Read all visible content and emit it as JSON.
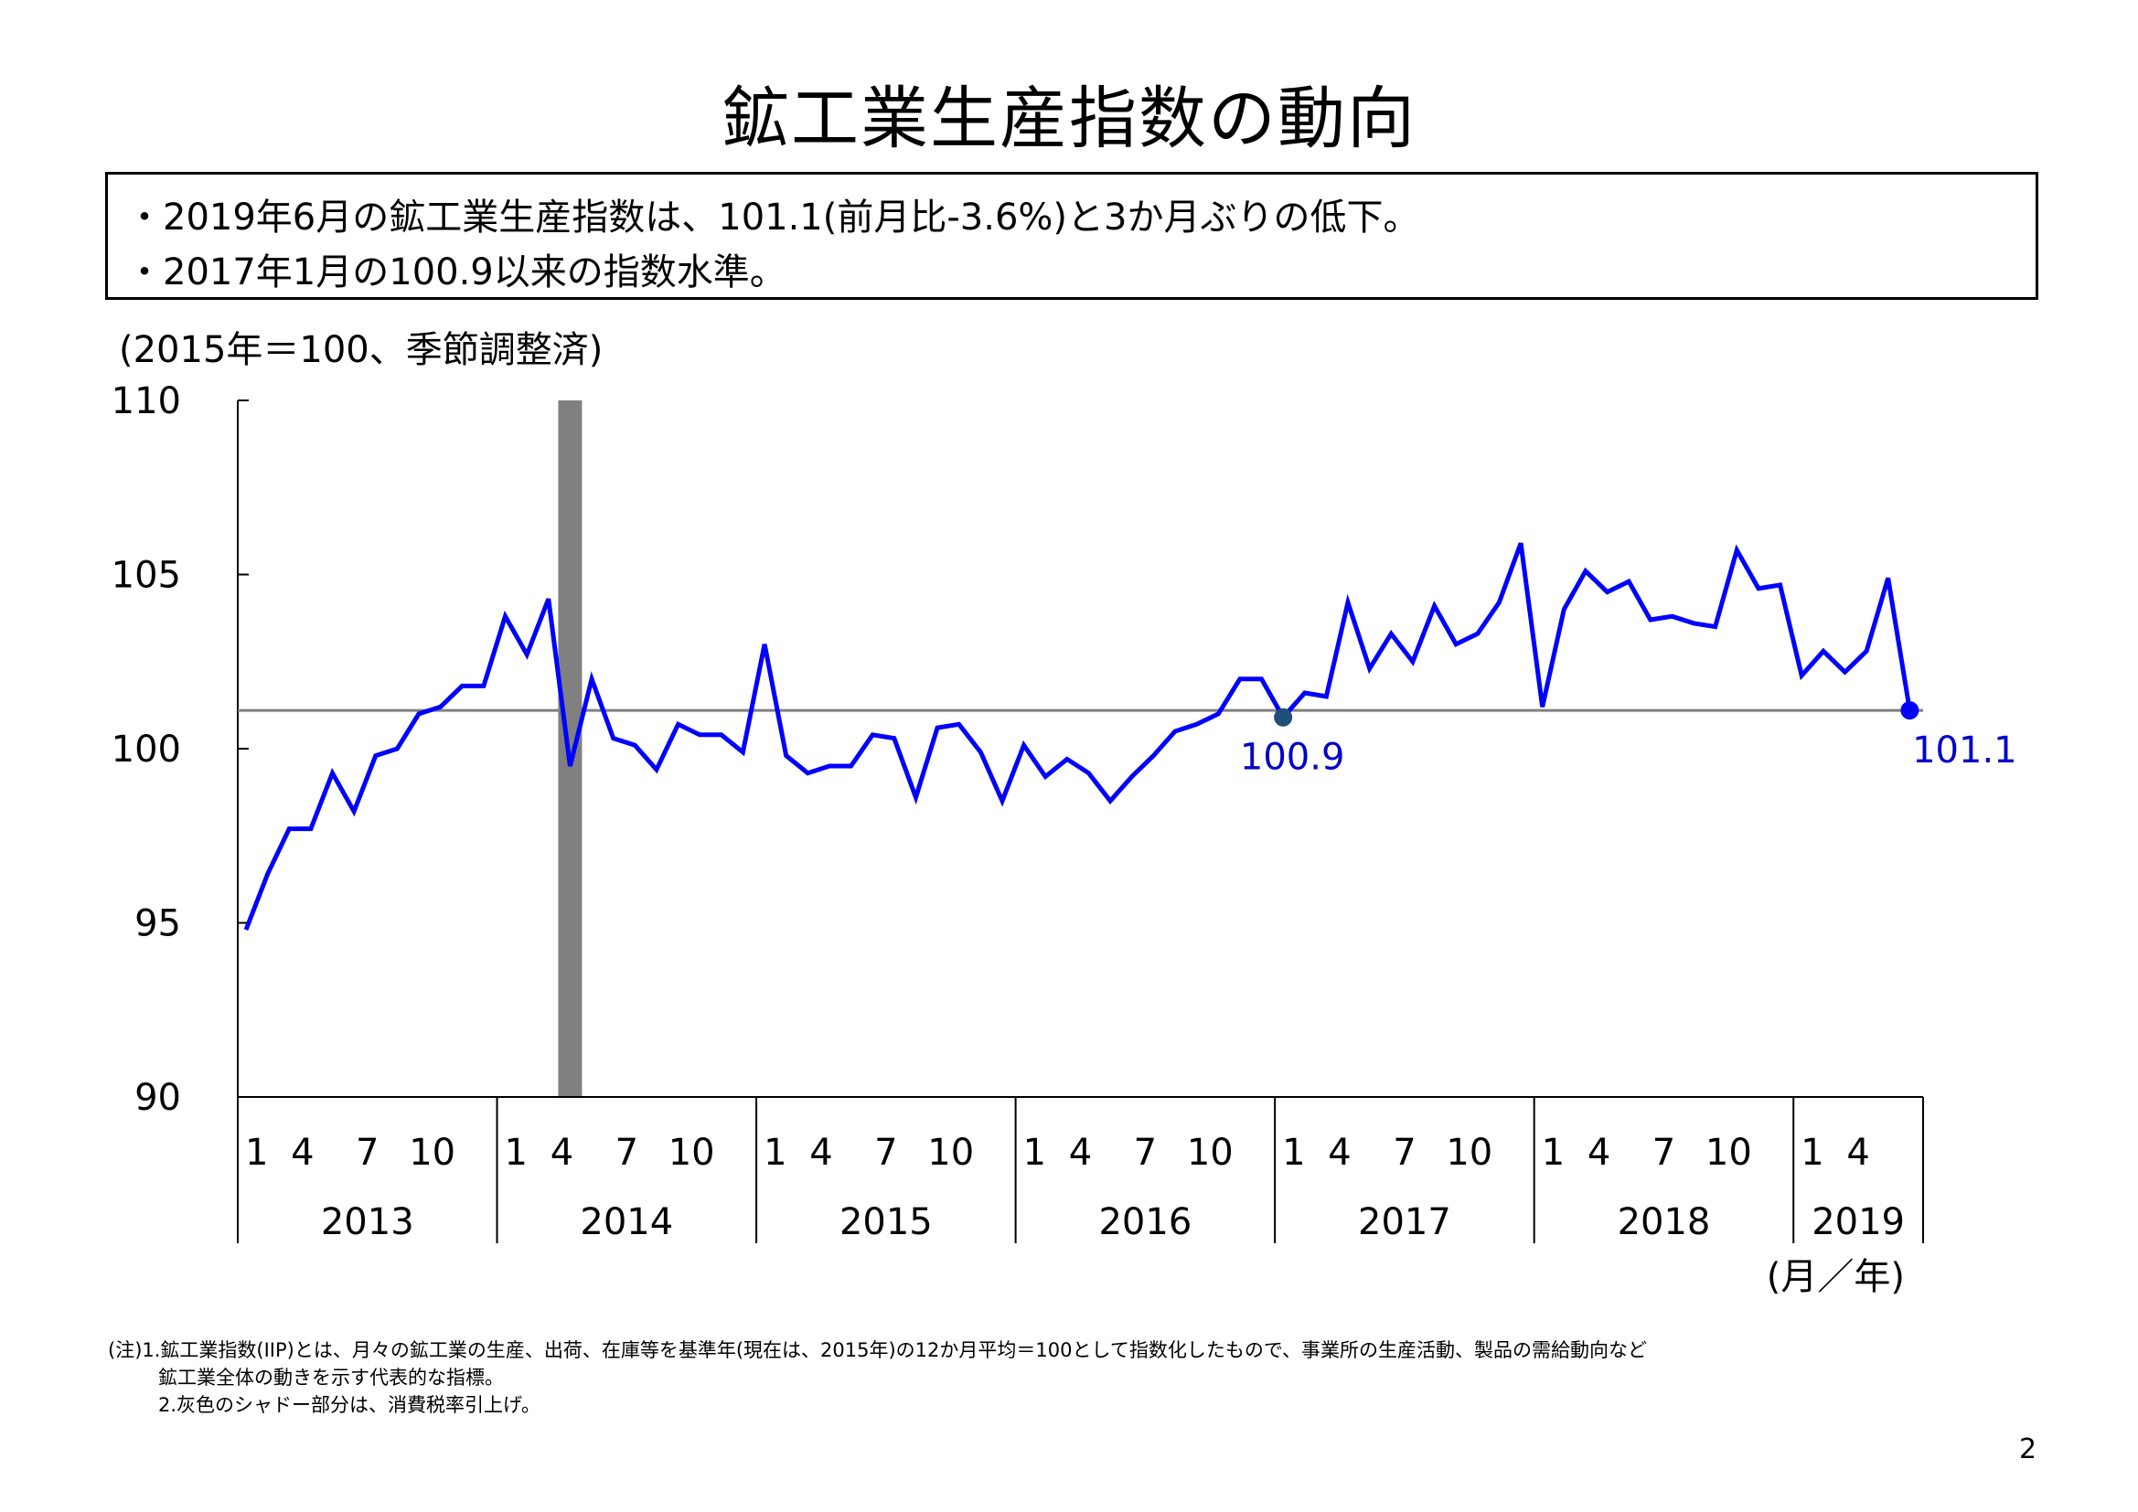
{
  "slide": {
    "title": "鉱工業生産指数の動向",
    "summary": [
      "・2019年6月の鉱工業生産指数は、101.1(前月比-3.6%)と3か月ぶりの低下。",
      "・2017年1月の100.9以来の指数水準。"
    ],
    "unit_note": "(2015年＝100、季節調整済)",
    "notes": [
      "(注)1.鉱工業指数(IIP)とは、月々の鉱工業の生産、出荷、在庫等を基準年(現在は、2015年)の12か月平均＝100として指数化したもので、事業所の生産活動、製品の需給動向など",
      "鉱工業全体の動きを示す代表的な指標。",
      "2.灰色のシャドー部分は、消費税率引上げ。"
    ],
    "page_number": "2"
  },
  "chart_data": {
    "type": "line",
    "ylim": [
      90,
      110
    ],
    "yticks": [
      90,
      95,
      100,
      105,
      110
    ],
    "month_ticks": [
      "1",
      "4",
      "7",
      "10"
    ],
    "years": [
      "2013",
      "2014",
      "2015",
      "2016",
      "2017",
      "2018",
      "2019"
    ],
    "x_unit_label": "(月／年)",
    "series": [
      {
        "color": "#0000ff",
        "start": "2013-01",
        "values": [
          94.8,
          96.4,
          97.7,
          97.7,
          99.3,
          98.2,
          99.8,
          100.0,
          101.0,
          101.2,
          101.8,
          101.8,
          103.8,
          102.7,
          104.3,
          99.5,
          102.0,
          100.3,
          100.1,
          99.4,
          100.7,
          100.4,
          100.4,
          99.9,
          103.0,
          99.8,
          99.3,
          99.5,
          99.5,
          100.4,
          100.3,
          98.6,
          100.6,
          100.7,
          99.9,
          98.5,
          100.1,
          99.2,
          99.7,
          99.3,
          98.5,
          99.2,
          99.8,
          100.5,
          100.7,
          101.0,
          102.0,
          102.0,
          100.9,
          101.6,
          101.5,
          104.2,
          102.3,
          103.3,
          102.5,
          104.1,
          103.0,
          103.3,
          104.2,
          105.9,
          101.2,
          104.0,
          105.1,
          104.5,
          104.8,
          103.7,
          103.8,
          103.6,
          103.5,
          105.7,
          104.6,
          104.7,
          102.1,
          102.8,
          102.2,
          102.8,
          104.9,
          101.1
        ]
      }
    ],
    "reference_line": {
      "value": 101.1,
      "color": "#808080"
    },
    "shaded_period": {
      "from": "2014-04",
      "to": "2014-04",
      "color": "#808080",
      "meaning": "消費税率引上げ"
    },
    "annotations": [
      {
        "date": "2017-01",
        "value": 100.9,
        "label": "100.9",
        "marker_color": "#1f4e79",
        "label_color": "#0000cc"
      },
      {
        "date": "2019-06",
        "value": 101.1,
        "label": "101.1",
        "marker_color": "#0000ff",
        "label_color": "#0000cc"
      }
    ]
  }
}
